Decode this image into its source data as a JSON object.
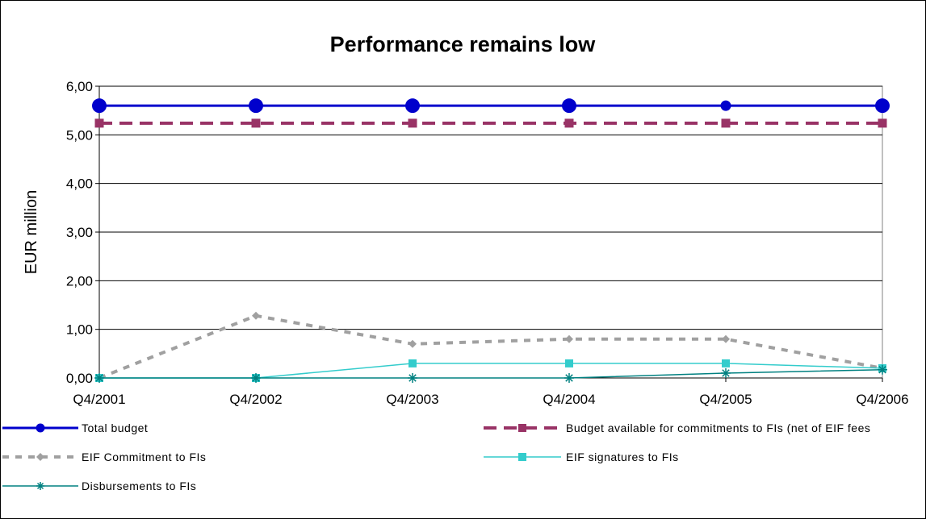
{
  "chart_data": {
    "type": "line",
    "title": "Performance remains low",
    "xlabel": "",
    "ylabel": "EUR million",
    "categories": [
      "Q4/2001",
      "Q4/2002",
      "Q4/2003",
      "Q4/2004",
      "Q4/2005",
      "Q4/2006"
    ],
    "ylim": [
      0,
      6
    ],
    "yticks": [
      "0,00",
      "1,00",
      "2,00",
      "3,00",
      "4,00",
      "5,00",
      "6,00"
    ],
    "grid": true,
    "legend_position": "bottom",
    "series": [
      {
        "name": "Total budget",
        "values": [
          5.6,
          5.6,
          5.6,
          5.6,
          5.6,
          5.6
        ],
        "color": "#0000CC",
        "dash": "solid",
        "marker": "circle"
      },
      {
        "name": "Budget available for commitments to FIs (net of EIF fees",
        "values": [
          5.24,
          5.24,
          5.24,
          5.24,
          5.24,
          5.24
        ],
        "color": "#993366",
        "dash": "dashed",
        "marker": "square"
      },
      {
        "name": "EIF Commitment to FIs",
        "values": [
          0.0,
          1.28,
          0.7,
          0.8,
          0.8,
          0.2
        ],
        "color": "#A0A0A0",
        "dash": "dotted",
        "marker": "diamond"
      },
      {
        "name": "EIF signatures to FIs",
        "values": [
          0.0,
          0.0,
          0.3,
          0.3,
          0.3,
          0.2
        ],
        "color": "#33CCCC",
        "dash": "solid",
        "marker": "square"
      },
      {
        "name": "Disbursements to FIs",
        "values": [
          0.0,
          0.0,
          0.0,
          0.0,
          0.1,
          0.17
        ],
        "color": "#008080",
        "dash": "solid",
        "marker": "star"
      }
    ]
  }
}
